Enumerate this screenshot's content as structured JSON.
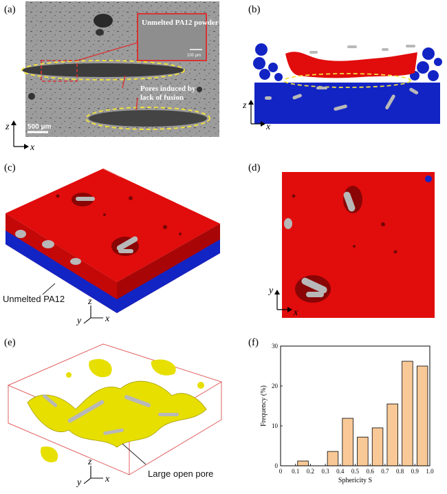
{
  "panels": {
    "a": {
      "label": "(a)",
      "inset_caption": "Unmelted PA12 powder",
      "inset_scale": "100 μm",
      "pore_label_line1": "Pores induced by",
      "pore_label_line2": "lack of fusion",
      "scale_bar": "500 μm",
      "axis_v": "z",
      "axis_h": "x"
    },
    "b": {
      "label": "(b)",
      "axis_v": "z",
      "axis_h": "x"
    },
    "c": {
      "label": "(c)",
      "callout": "Unmelted PA12",
      "axis_z": "z",
      "axis_y": "y",
      "axis_x": "x"
    },
    "d": {
      "label": "(d)",
      "axis_v": "y",
      "axis_h": "x"
    },
    "e": {
      "label": "(e)",
      "callout": "Large open pore",
      "axis_z": "z",
      "axis_y": "y",
      "axis_x": "x"
    },
    "f": {
      "label": "(f)"
    }
  },
  "colors": {
    "melt": "#e10c0c",
    "powder": "#1324c4",
    "particle": "#b8b8b8",
    "pore": "#e6df00",
    "bar": "#f8c896",
    "annotation": "#d83232",
    "dashed": "#f0e040"
  },
  "chart_data": {
    "type": "bar",
    "categories": [
      "0.1-0.2",
      "0.2-0.3",
      "0.3-0.4",
      "0.4-0.5",
      "0.5-0.6",
      "0.6-0.7",
      "0.7-0.8",
      "0.8-0.9",
      "0.9-1.0"
    ],
    "x_centers": [
      0.15,
      0.25,
      0.35,
      0.45,
      0.55,
      0.65,
      0.75,
      0.85,
      0.95
    ],
    "values": [
      1.2,
      0,
      3.6,
      11.9,
      7.2,
      9.5,
      15.5,
      26.2,
      25.0
    ],
    "xlabel": "Sphericity S",
    "ylabel": "Frequency (%)",
    "xlim": [
      0,
      1.0
    ],
    "ylim": [
      0,
      30
    ],
    "xticks": [
      "0",
      "0.1",
      "0.2",
      "0.3",
      "0.4",
      "0.5",
      "0.6",
      "0.7",
      "0.8",
      "0.9",
      "1.0"
    ],
    "yticks": [
      "0",
      "10",
      "20",
      "30"
    ]
  }
}
